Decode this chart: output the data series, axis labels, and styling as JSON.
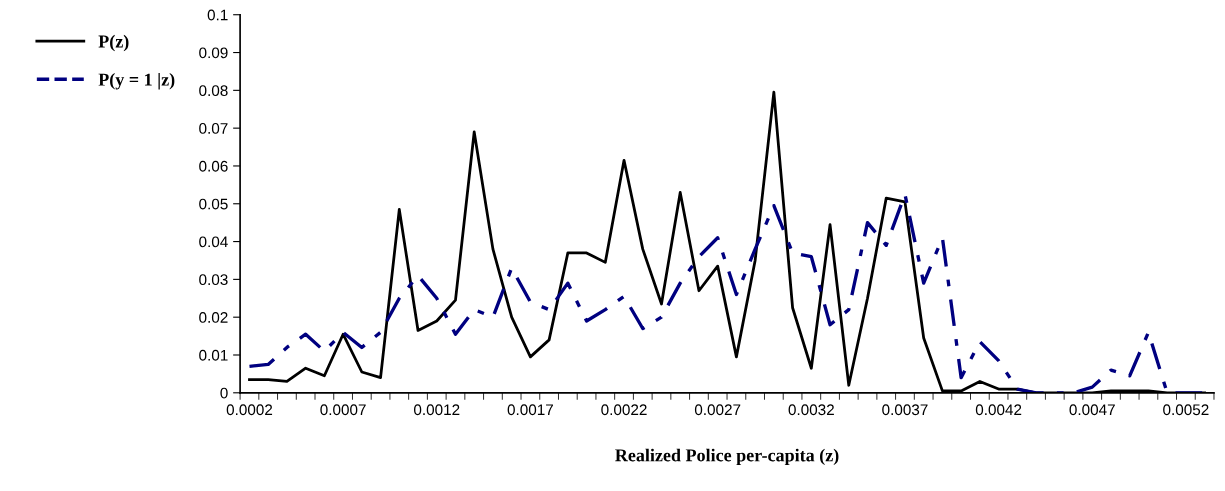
{
  "chart_data": {
    "type": "line",
    "xlabel": "Realized Police per-capita (z)",
    "categories": [
      "0.0002",
      null,
      null,
      null,
      null,
      "0.0007",
      null,
      null,
      null,
      null,
      "0.0012",
      null,
      null,
      null,
      null,
      "0.0017",
      null,
      null,
      null,
      null,
      "0.0022",
      null,
      null,
      null,
      null,
      "0.0027",
      null,
      null,
      null,
      null,
      "0.0032",
      null,
      null,
      null,
      null,
      "0.0037",
      null,
      null,
      null,
      null,
      "0.0042",
      null,
      null,
      null,
      null,
      "0.0047",
      null,
      null,
      null,
      null,
      "0.0052",
      null
    ],
    "series": [
      {
        "name": "P(z)",
        "color": "#000000",
        "line_style": "solid",
        "values": [
          0.0035,
          0.0035,
          0.003,
          0.0065,
          0.0045,
          0.0155,
          0.0055,
          0.004,
          0.0485,
          0.0165,
          0.019,
          0.0245,
          0.069,
          0.038,
          0.02,
          0.0095,
          0.014,
          0.037,
          0.037,
          0.0345,
          0.0615,
          0.038,
          0.0235,
          0.053,
          0.027,
          0.0335,
          0.0095,
          0.035,
          0.0795,
          0.0225,
          0.0065,
          0.0445,
          0.002,
          0.025,
          0.0515,
          0.0505,
          0.0145,
          0.0005,
          0.0005,
          0.003,
          0.001,
          0.001,
          0,
          0,
          0,
          0,
          0.0005,
          0.0005,
          0.0005,
          0,
          0,
          0
        ]
      },
      {
        "name": "P(y = 1 |z)",
        "color": "#000080",
        "line_style": "dashdot",
        "values": [
          0.007,
          0.0075,
          0.012,
          0.0155,
          0.011,
          0.016,
          0.012,
          0.016,
          0.025,
          0.031,
          0.025,
          0.0155,
          0.022,
          0.02,
          0.033,
          0.024,
          0.022,
          0.029,
          0.019,
          0.022,
          0.0255,
          0.017,
          0.02,
          0.029,
          0.036,
          0.041,
          0.026,
          0.038,
          0.0495,
          0.037,
          0.036,
          0.018,
          0.022,
          0.045,
          0.039,
          0.0525,
          0.029,
          0.041,
          0.004,
          0.0135,
          0.0085,
          0.001,
          0,
          0,
          0,
          0.0015,
          0.006,
          0.0045,
          0.016,
          0,
          0,
          0
        ]
      }
    ],
    "ylim": [
      0,
      0.1
    ],
    "yticks": [
      0,
      0.01,
      0.02,
      0.03,
      0.04,
      0.05,
      0.06,
      0.07,
      0.08,
      0.09,
      0.1
    ],
    "grid": false,
    "legend": "top left",
    "marker": "none"
  }
}
